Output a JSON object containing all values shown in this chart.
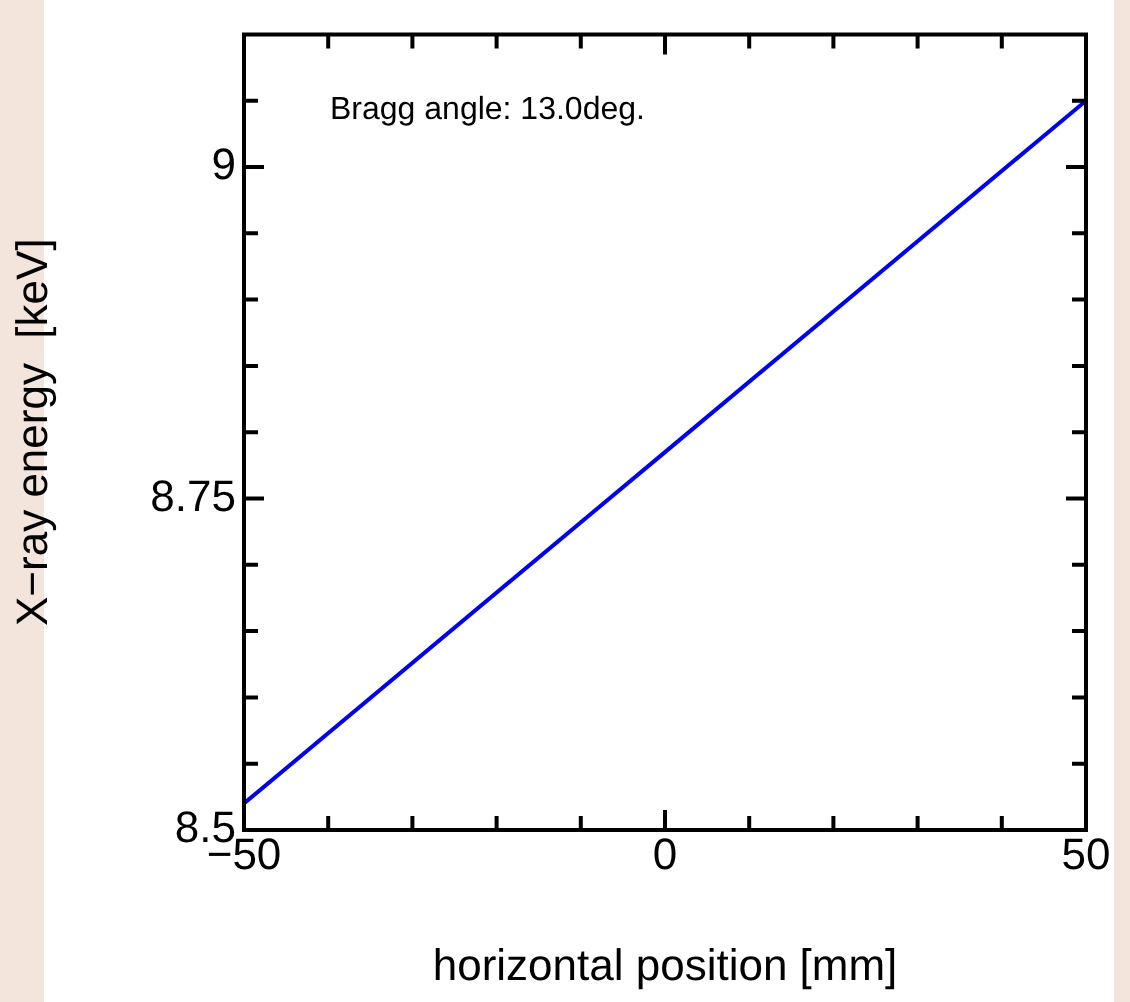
{
  "chart_data": {
    "type": "line",
    "xlabel": "horizontal position [mm]",
    "ylabel": "X−ray energy  [keV]",
    "annotations": [
      "Bragg angle: 13.0deg."
    ],
    "x": [
      -50,
      0,
      50
    ],
    "series": [
      {
        "color": "#0000ff",
        "values": [
          8.52,
          8.785,
          9.05
        ]
      }
    ],
    "xlim": [
      -50,
      50
    ],
    "xticks": [
      {
        "value": -50,
        "label": "−50"
      },
      {
        "value": -40,
        "label": null
      },
      {
        "value": -30,
        "label": null
      },
      {
        "value": -20,
        "label": null
      },
      {
        "value": -10,
        "label": null
      },
      0,
      {
        "value": 10,
        "label": null
      },
      {
        "value": 20,
        "label": null
      },
      {
        "value": 30,
        "label": null
      },
      {
        "value": 40,
        "label": null
      },
      50
    ],
    "ylim": [
      8.5,
      9.1
    ],
    "yticks": [
      8.5,
      {
        "value": 8.55,
        "label": null
      },
      {
        "value": 8.6,
        "label": null
      },
      {
        "value": 8.65,
        "label": null
      },
      {
        "value": 8.7,
        "label": null
      },
      8.75,
      {
        "value": 8.8,
        "label": null
      },
      {
        "value": 8.85,
        "label": null
      },
      {
        "value": 8.9,
        "label": null
      },
      {
        "value": 8.95,
        "label": null
      },
      9,
      {
        "value": 9.05,
        "label": null
      }
    ],
    "grid": false,
    "legend": false,
    "marker": "none",
    "line_style": "solid"
  }
}
